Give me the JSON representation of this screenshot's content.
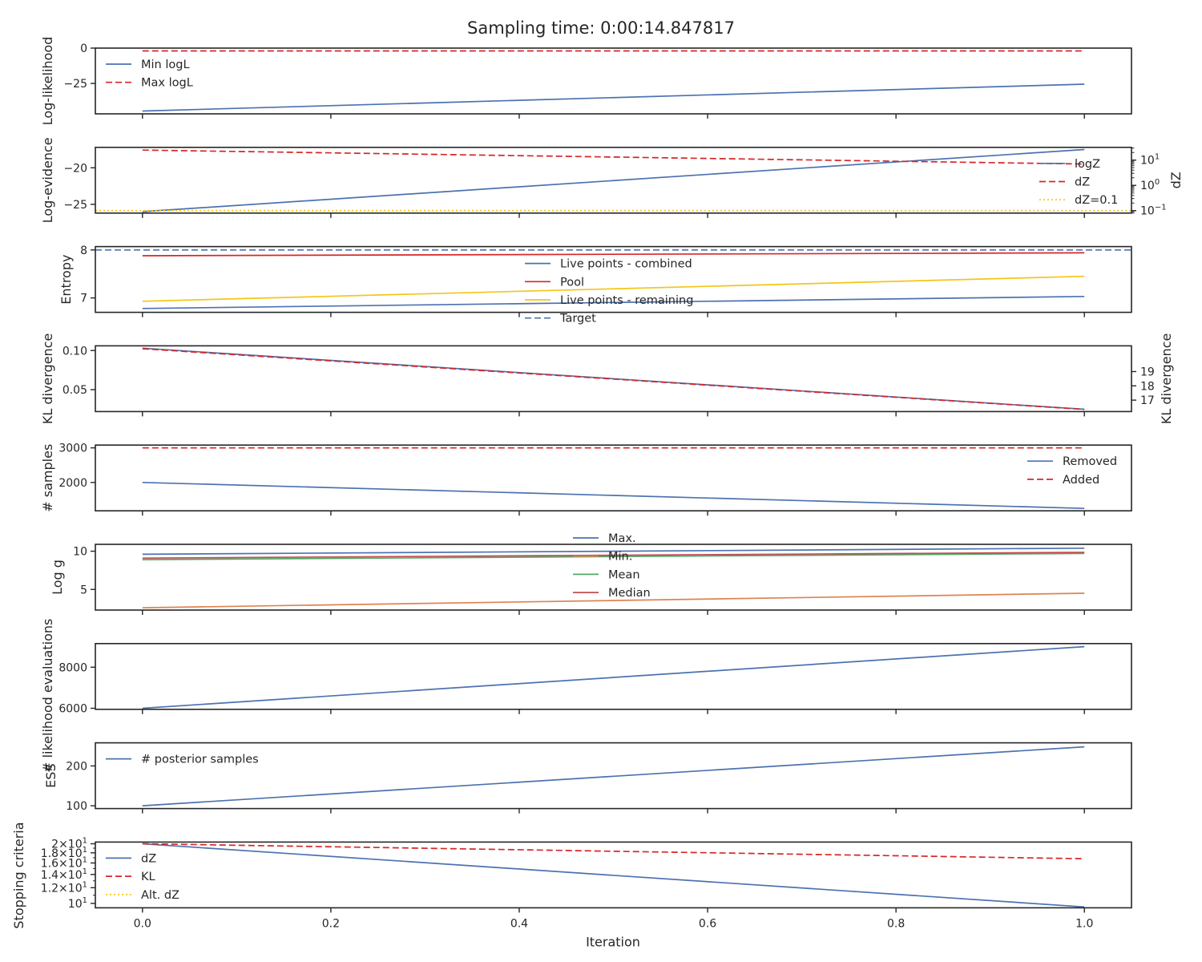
{
  "title": "Sampling time: 0:00:14.847817",
  "colors": {
    "blue": "#4c72b0",
    "red": "#d62728",
    "yellow": "#f5c518",
    "orange": "#dd8452",
    "green": "#55a868",
    "median_red": "#c44e52",
    "axis": "#262626"
  },
  "chart_data": [
    {
      "type": "line",
      "ylabel": "Log-likelihood",
      "xlim": [
        -0.05,
        1.05
      ],
      "ylim": [
        -46.5,
        0
      ],
      "yticks": [
        {
          "v": 0,
          "label": "0"
        },
        {
          "v": -25,
          "label": "−25"
        }
      ],
      "legend": {
        "position": "upper-left",
        "entries": [
          {
            "label": "Min logL",
            "color": "blue",
            "dash": "solid"
          },
          {
            "label": "Max logL",
            "color": "red",
            "dash": "dashed"
          }
        ]
      },
      "series": [
        {
          "name": "Min logL",
          "color": "blue",
          "dash": "solid",
          "x": [
            0,
            1
          ],
          "y": [
            -44.5,
            -25.5
          ]
        },
        {
          "name": "Max logL",
          "color": "red",
          "dash": "dashed",
          "x": [
            0,
            1
          ],
          "y": [
            -2,
            -2
          ]
        }
      ]
    },
    {
      "type": "line",
      "ylabel": "Log-evidence",
      "xlim": [
        -0.05,
        1.05
      ],
      "ylim": [
        -26.2,
        -17.2
      ],
      "yticks": [
        {
          "v": -20,
          "label": "−20"
        },
        {
          "v": -25,
          "label": "−25"
        }
      ],
      "y2": {
        "label": "dZ",
        "scale": "log",
        "ylim": [
          0.08,
          32
        ],
        "ticks": [
          {
            "v": 10,
            "base": "10",
            "exp": "1"
          },
          {
            "v": 1,
            "base": "10",
            "exp": "0"
          },
          {
            "v": 0.1,
            "base": "10",
            "exp": "−1"
          }
        ]
      },
      "legend": {
        "position": "right",
        "entries": [
          {
            "label": "logZ",
            "color": "blue",
            "dash": "solid"
          },
          {
            "label": "dZ",
            "color": "red",
            "dash": "dashed"
          },
          {
            "label": "dZ=0.1",
            "color": "yellow",
            "dash": "dotted"
          }
        ]
      },
      "series": [
        {
          "name": "logZ",
          "color": "blue",
          "dash": "solid",
          "x": [
            0,
            1
          ],
          "y": [
            -26.0,
            -17.5
          ]
        },
        {
          "name": "dZ",
          "axis": "y2",
          "color": "red",
          "dash": "dashed",
          "x": [
            0,
            1
          ],
          "y": [
            25,
            7
          ]
        },
        {
          "name": "dZ=0.1",
          "axis": "y2",
          "color": "yellow",
          "dash": "dotted",
          "hline": 0.1
        }
      ]
    },
    {
      "type": "line",
      "ylabel": "Entropy",
      "xlim": [
        -0.05,
        1.05
      ],
      "ylim": [
        6.7,
        8.07
      ],
      "yticks": [
        {
          "v": 8,
          "label": "8"
        },
        {
          "v": 7,
          "label": "7"
        }
      ],
      "legend": {
        "position": "center",
        "entries": [
          {
            "label": "Live points - combined",
            "color": "blue",
            "dash": "solid"
          },
          {
            "label": "Pool",
            "color": "red",
            "dash": "solid"
          },
          {
            "label": "Live points - remaining",
            "color": "yellow",
            "dash": "solid"
          },
          {
            "label": "Target",
            "color": "blue",
            "dash": "dashed"
          }
        ]
      },
      "series": [
        {
          "name": "Live points - combined",
          "color": "blue",
          "dash": "solid",
          "x": [
            0,
            1
          ],
          "y": [
            6.78,
            7.03
          ]
        },
        {
          "name": "Pool",
          "color": "red",
          "dash": "solid",
          "x": [
            0,
            1
          ],
          "y": [
            7.88,
            7.94
          ]
        },
        {
          "name": "Live points - remaining",
          "color": "yellow",
          "dash": "solid",
          "x": [
            0,
            1
          ],
          "y": [
            6.93,
            7.45
          ]
        },
        {
          "name": "Target",
          "color": "blue",
          "dash": "dashed",
          "hline": 8.0
        }
      ]
    },
    {
      "type": "line",
      "ylabel": "KL divergence",
      "xlim": [
        -0.05,
        1.05
      ],
      "ylim": [
        0.022,
        0.106
      ],
      "yticks": [
        {
          "v": 0.1,
          "label": "0.10"
        },
        {
          "v": 0.05,
          "label": "0.05"
        }
      ],
      "y2": {
        "label": "KL divergence",
        "ylim": [
          16.2,
          20.8
        ],
        "ticks": [
          {
            "v": 19,
            "label": "19"
          },
          {
            "v": 18,
            "label": "18"
          },
          {
            "v": 17,
            "label": "17"
          }
        ]
      },
      "series": [
        {
          "name": "KL",
          "color": "blue",
          "dash": "solid",
          "x": [
            0,
            1
          ],
          "y": [
            0.103,
            0.025
          ]
        },
        {
          "name": "KL (right)",
          "axis": "y2",
          "color": "red",
          "dash": "dashed",
          "x": [
            0,
            1
          ],
          "y": [
            20.6,
            16.35
          ]
        }
      ]
    },
    {
      "type": "line",
      "ylabel": "# samples",
      "xlim": [
        -0.05,
        1.05
      ],
      "ylim": [
        1180,
        3080
      ],
      "yticks": [
        {
          "v": 3000,
          "label": "3000"
        },
        {
          "v": 2000,
          "label": "2000"
        }
      ],
      "legend": {
        "position": "right",
        "entries": [
          {
            "label": "Removed",
            "color": "blue",
            "dash": "solid"
          },
          {
            "label": "Added",
            "color": "red",
            "dash": "dashed"
          }
        ]
      },
      "series": [
        {
          "name": "Removed",
          "color": "blue",
          "dash": "solid",
          "x": [
            0,
            1
          ],
          "y": [
            2000,
            1250
          ]
        },
        {
          "name": "Added",
          "color": "red",
          "dash": "dashed",
          "x": [
            0,
            1
          ],
          "y": [
            3000,
            3000
          ]
        }
      ]
    },
    {
      "type": "line",
      "ylabel": "Log g",
      "xlim": [
        -0.05,
        1.05
      ],
      "ylim": [
        2.3,
        10.9
      ],
      "yticks": [
        {
          "v": 10,
          "label": "10"
        },
        {
          "v": 5,
          "label": "5"
        }
      ],
      "legend": {
        "position": "center",
        "entries": [
          {
            "label": "Max.",
            "color": "blue",
            "dash": "solid"
          },
          {
            "label": "Min.",
            "color": "orange",
            "dash": "solid"
          },
          {
            "label": "Mean",
            "color": "green",
            "dash": "solid"
          },
          {
            "label": "Median",
            "color": "median_red",
            "dash": "solid"
          }
        ]
      },
      "series": [
        {
          "name": "Max.",
          "color": "blue",
          "dash": "solid",
          "x": [
            0,
            1
          ],
          "y": [
            9.6,
            10.4
          ]
        },
        {
          "name": "Min.",
          "color": "orange",
          "dash": "solid",
          "x": [
            0,
            1
          ],
          "y": [
            2.6,
            4.5
          ]
        },
        {
          "name": "Mean",
          "color": "green",
          "dash": "solid",
          "x": [
            0,
            1
          ],
          "y": [
            8.9,
            9.7
          ]
        },
        {
          "name": "Median",
          "color": "median_red",
          "dash": "solid",
          "x": [
            0,
            1
          ],
          "y": [
            9.1,
            9.85
          ]
        }
      ]
    },
    {
      "type": "line",
      "ylabel": "# likelihood evaluations",
      "xlim": [
        -0.05,
        1.05
      ],
      "ylim": [
        5950,
        9150
      ],
      "yticks": [
        {
          "v": 8000,
          "label": "8000"
        },
        {
          "v": 6000,
          "label": "6000"
        }
      ],
      "series": [
        {
          "name": "evaluations",
          "color": "blue",
          "dash": "solid",
          "x": [
            0,
            1
          ],
          "y": [
            6000,
            9000
          ]
        }
      ]
    },
    {
      "type": "line",
      "ylabel": "ESS",
      "xlim": [
        -0.05,
        1.05
      ],
      "ylim": [
        93,
        258
      ],
      "yticks": [
        {
          "v": 200,
          "label": "200"
        },
        {
          "v": 100,
          "label": "100"
        }
      ],
      "legend": {
        "position": "upper-left",
        "entries": [
          {
            "label": "# posterior samples",
            "color": "blue",
            "dash": "solid"
          }
        ]
      },
      "series": [
        {
          "name": "# posterior samples",
          "color": "blue",
          "dash": "solid",
          "x": [
            0,
            1
          ],
          "y": [
            100,
            248
          ]
        }
      ]
    },
    {
      "type": "line",
      "ylabel": "Stopping criteria",
      "xlabel": "Iteration",
      "scale": "log",
      "xlim": [
        -0.05,
        1.05
      ],
      "ylim": [
        9.5,
        20.4
      ],
      "yticks": [
        {
          "v": 20,
          "coef": "2",
          "base": "10",
          "exp": "1"
        },
        {
          "v": 18,
          "coef": "1.8",
          "base": "10",
          "exp": "1"
        },
        {
          "v": 16,
          "coef": "1.6",
          "base": "10",
          "exp": "1"
        },
        {
          "v": 14,
          "coef": "1.4",
          "base": "10",
          "exp": "1"
        },
        {
          "v": 12,
          "coef": "1.2",
          "base": "10",
          "exp": "1"
        },
        {
          "v": 10,
          "base": "10",
          "exp": "1"
        }
      ],
      "xticks": [
        "0.0",
        "0.2",
        "0.4",
        "0.6",
        "0.8",
        "1.0"
      ],
      "legend": {
        "position": "upper-left",
        "entries": [
          {
            "label": "dZ",
            "color": "blue",
            "dash": "solid"
          },
          {
            "label": "KL",
            "color": "red",
            "dash": "dashed"
          },
          {
            "label": "Alt. dZ",
            "color": "yellow",
            "dash": "dotted"
          }
        ]
      },
      "series": [
        {
          "name": "dZ",
          "color": "blue",
          "dash": "solid",
          "x": [
            0,
            1
          ],
          "y": [
            20,
            9.6
          ]
        },
        {
          "name": "KL",
          "color": "red",
          "dash": "dashed",
          "x": [
            0,
            1
          ],
          "y": [
            20,
            16.8
          ]
        }
      ]
    }
  ]
}
